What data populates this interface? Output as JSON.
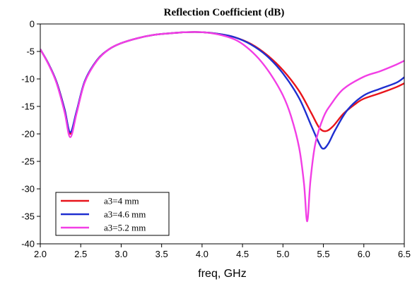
{
  "chart_data": {
    "type": "line",
    "title": "Reflection Coefficient (dB)",
    "xlabel": "freq, GHz",
    "ylabel": "",
    "xlim": [
      2.0,
      6.5
    ],
    "ylim": [
      -40,
      0
    ],
    "xticks": [
      "2.0",
      "2.5",
      "3.0",
      "3.5",
      "4.0",
      "4.5",
      "5.0",
      "5.5",
      "6.0",
      "6.5"
    ],
    "yticks": [
      "0",
      "-5",
      "-10",
      "-15",
      "-20",
      "-25",
      "-30",
      "-35",
      "-40"
    ],
    "grid": false,
    "legend_position": "bottom-left",
    "series": [
      {
        "name": "a3=4 mm",
        "color": "#e8141b",
        "points": [
          [
            2.0,
            -4.6
          ],
          [
            2.1,
            -7.2
          ],
          [
            2.2,
            -10.5
          ],
          [
            2.3,
            -15.5
          ],
          [
            2.37,
            -20.0
          ],
          [
            2.45,
            -16.0
          ],
          [
            2.55,
            -10.5
          ],
          [
            2.7,
            -6.6
          ],
          [
            2.85,
            -4.6
          ],
          [
            3.0,
            -3.5
          ],
          [
            3.2,
            -2.6
          ],
          [
            3.4,
            -2.0
          ],
          [
            3.6,
            -1.7
          ],
          [
            3.8,
            -1.5
          ],
          [
            4.0,
            -1.5
          ],
          [
            4.2,
            -1.8
          ],
          [
            4.4,
            -2.4
          ],
          [
            4.6,
            -3.6
          ],
          [
            4.8,
            -5.6
          ],
          [
            5.0,
            -8.4
          ],
          [
            5.2,
            -12.2
          ],
          [
            5.35,
            -16.2
          ],
          [
            5.45,
            -18.9
          ],
          [
            5.53,
            -19.5
          ],
          [
            5.62,
            -18.6
          ],
          [
            5.75,
            -16.3
          ],
          [
            5.9,
            -14.5
          ],
          [
            6.0,
            -13.6
          ],
          [
            6.2,
            -12.6
          ],
          [
            6.4,
            -11.5
          ],
          [
            6.5,
            -10.8
          ]
        ]
      },
      {
        "name": "a3=4.6 mm",
        "color": "#1f2fd0",
        "points": [
          [
            2.0,
            -4.6
          ],
          [
            2.1,
            -7.2
          ],
          [
            2.2,
            -10.5
          ],
          [
            2.3,
            -15.5
          ],
          [
            2.37,
            -19.7
          ],
          [
            2.45,
            -15.8
          ],
          [
            2.55,
            -10.4
          ],
          [
            2.7,
            -6.6
          ],
          [
            2.85,
            -4.6
          ],
          [
            3.0,
            -3.5
          ],
          [
            3.2,
            -2.6
          ],
          [
            3.4,
            -2.0
          ],
          [
            3.6,
            -1.7
          ],
          [
            3.8,
            -1.5
          ],
          [
            4.0,
            -1.5
          ],
          [
            4.2,
            -1.8
          ],
          [
            4.4,
            -2.4
          ],
          [
            4.6,
            -3.7
          ],
          [
            4.8,
            -5.8
          ],
          [
            5.0,
            -9.0
          ],
          [
            5.2,
            -13.5
          ],
          [
            5.35,
            -18.5
          ],
          [
            5.45,
            -21.8
          ],
          [
            5.5,
            -22.7
          ],
          [
            5.56,
            -21.8
          ],
          [
            5.65,
            -19.2
          ],
          [
            5.8,
            -15.6
          ],
          [
            6.0,
            -13.0
          ],
          [
            6.2,
            -11.8
          ],
          [
            6.4,
            -10.7
          ],
          [
            6.5,
            -9.7
          ]
        ]
      },
      {
        "name": "a3=5.2 mm",
        "color": "#f23ee5",
        "points": [
          [
            2.0,
            -4.6
          ],
          [
            2.1,
            -7.3
          ],
          [
            2.2,
            -10.7
          ],
          [
            2.3,
            -16.0
          ],
          [
            2.37,
            -20.6
          ],
          [
            2.45,
            -16.2
          ],
          [
            2.55,
            -10.6
          ],
          [
            2.7,
            -6.7
          ],
          [
            2.85,
            -4.6
          ],
          [
            3.0,
            -3.5
          ],
          [
            3.2,
            -2.6
          ],
          [
            3.4,
            -2.0
          ],
          [
            3.6,
            -1.7
          ],
          [
            3.8,
            -1.5
          ],
          [
            4.0,
            -1.5
          ],
          [
            4.2,
            -1.9
          ],
          [
            4.4,
            -2.8
          ],
          [
            4.55,
            -4.2
          ],
          [
            4.7,
            -6.3
          ],
          [
            4.85,
            -9.2
          ],
          [
            5.0,
            -13.0
          ],
          [
            5.1,
            -16.8
          ],
          [
            5.2,
            -22.5
          ],
          [
            5.26,
            -29.0
          ],
          [
            5.3,
            -35.9
          ],
          [
            5.34,
            -28.5
          ],
          [
            5.4,
            -21.8
          ],
          [
            5.5,
            -17.0
          ],
          [
            5.6,
            -14.5
          ],
          [
            5.75,
            -11.8
          ],
          [
            6.0,
            -9.6
          ],
          [
            6.2,
            -8.6
          ],
          [
            6.4,
            -7.4
          ],
          [
            6.5,
            -6.7
          ]
        ]
      }
    ]
  }
}
